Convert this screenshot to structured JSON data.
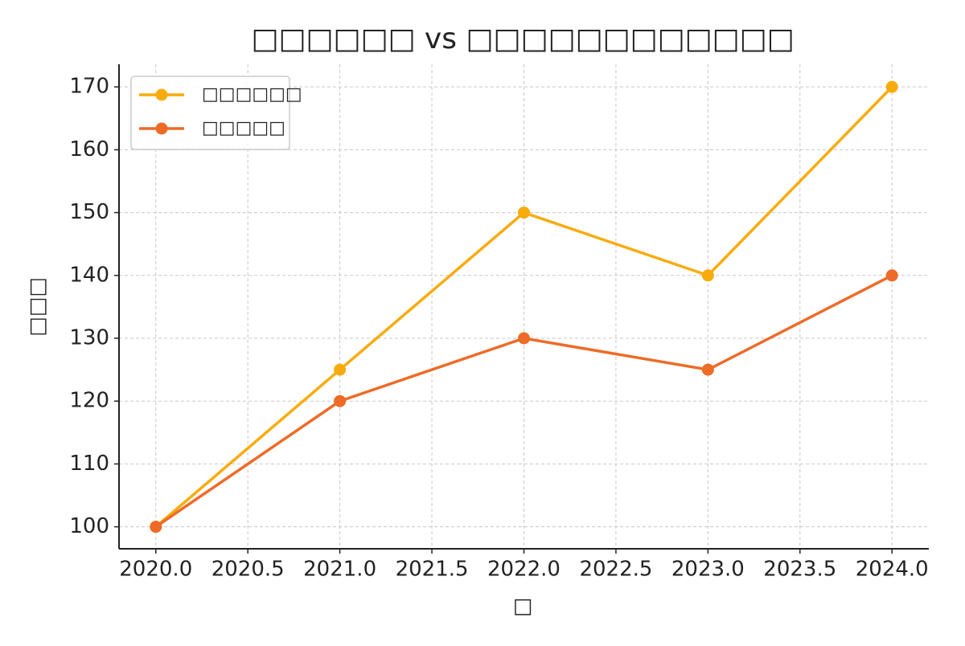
{
  "chart_data": {
    "type": "line",
    "title": "□□□□□□ vs □□□□□□□□□□□□",
    "xlabel": "□",
    "ylabel": "□□□",
    "x": [
      2020,
      2021,
      2022,
      2023,
      2024
    ],
    "series": [
      {
        "name": "□□□□□□",
        "color": "#f9ab0c",
        "values": [
          100,
          125,
          150,
          140,
          170
        ]
      },
      {
        "name": "□□□□□",
        "color": "#ee6b27",
        "values": [
          100,
          120,
          130,
          125,
          140
        ]
      }
    ],
    "xlim": [
      2019.8,
      2024.2
    ],
    "xticks": [
      {
        "value": 2020,
        "label": "2020.0"
      },
      2020.5,
      {
        "value": 2021,
        "label": "2021.0"
      },
      2021.5,
      {
        "value": 2022,
        "label": "2022.0"
      },
      2022.5,
      {
        "value": 2023,
        "label": "2023.0"
      },
      2023.5,
      {
        "value": 2024,
        "label": "2024.0"
      }
    ],
    "ylim": [
      96.5,
      173.6
    ],
    "yticks": [
      100,
      110,
      120,
      130,
      140,
      150,
      160,
      170
    ],
    "grid": true,
    "legend": "upper left"
  }
}
